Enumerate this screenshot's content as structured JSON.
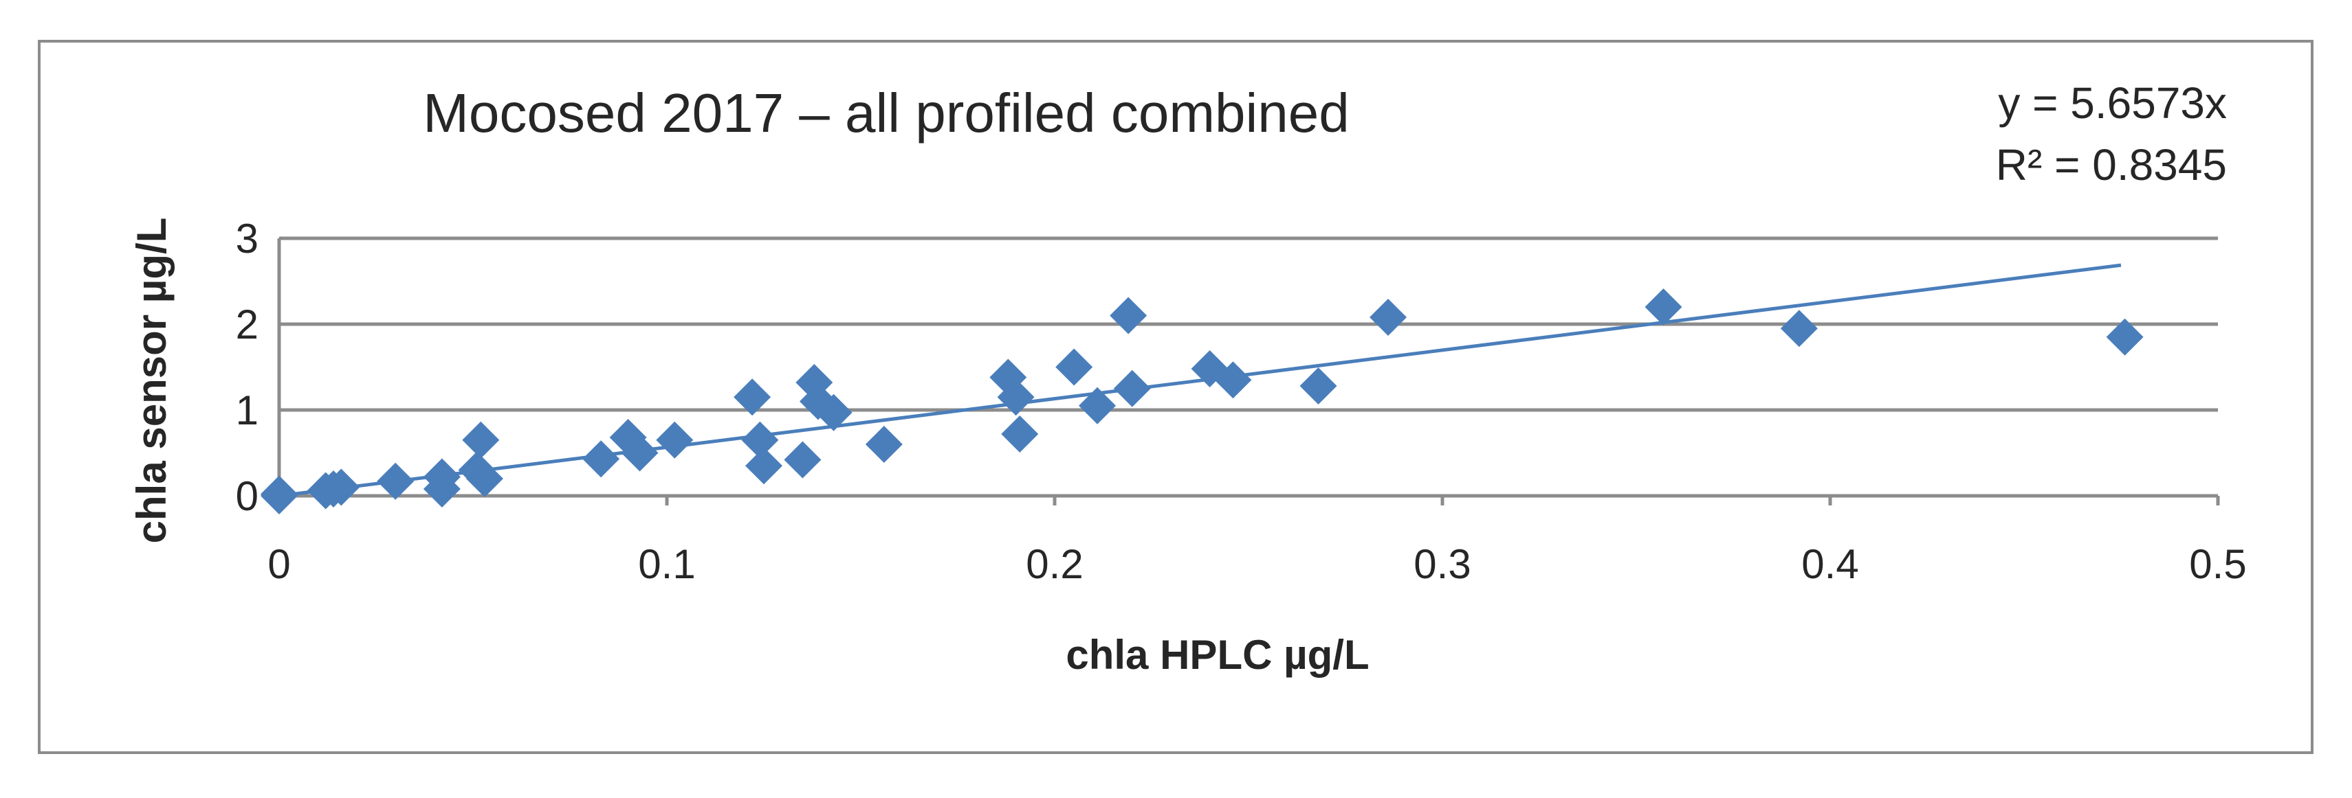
{
  "chart_data": {
    "type": "scatter",
    "title": "Mocosed 2017 – all profiled combined",
    "xlabel": "chla HPLC µg/L",
    "ylabel": "chla sensor µg/L",
    "xlim": [
      0,
      0.5
    ],
    "ylim": [
      0,
      3
    ],
    "xticks": [
      "0",
      "0.1",
      "0.2",
      "0.3",
      "0.4",
      "0.5"
    ],
    "yticks": [
      "0",
      "1",
      "2",
      "3"
    ],
    "grid": true,
    "legend": "none",
    "colors": {
      "marker": "#4a7ebb",
      "trendline": "#4a7ebb",
      "grid": "#8c8c8c"
    },
    "trendline": {
      "equation": "y = 5.6573x",
      "r_squared": "R² = 0.8345",
      "slope": 5.6573,
      "x_range": [
        0,
        0.475
      ]
    },
    "points": [
      [
        0.0,
        0.0
      ],
      [
        0.0,
        0.02
      ],
      [
        0.012,
        0.06
      ],
      [
        0.014,
        0.08
      ],
      [
        0.016,
        0.1
      ],
      [
        0.03,
        0.17
      ],
      [
        0.042,
        0.22
      ],
      [
        0.042,
        0.08
      ],
      [
        0.051,
        0.3
      ],
      [
        0.052,
        0.65
      ],
      [
        0.053,
        0.2
      ],
      [
        0.083,
        0.43
      ],
      [
        0.09,
        0.68
      ],
      [
        0.093,
        0.5
      ],
      [
        0.102,
        0.65
      ],
      [
        0.122,
        1.15
      ],
      [
        0.124,
        0.65
      ],
      [
        0.125,
        0.35
      ],
      [
        0.135,
        0.42
      ],
      [
        0.138,
        1.32
      ],
      [
        0.139,
        1.1
      ],
      [
        0.143,
        0.97
      ],
      [
        0.156,
        0.6
      ],
      [
        0.188,
        1.38
      ],
      [
        0.19,
        1.15
      ],
      [
        0.191,
        0.72
      ],
      [
        0.205,
        1.5
      ],
      [
        0.211,
        1.05
      ],
      [
        0.219,
        2.1
      ],
      [
        0.22,
        1.25
      ],
      [
        0.24,
        1.48
      ],
      [
        0.246,
        1.35
      ],
      [
        0.268,
        1.28
      ],
      [
        0.286,
        2.08
      ],
      [
        0.357,
        2.2
      ],
      [
        0.392,
        1.95
      ],
      [
        0.476,
        1.85
      ]
    ]
  }
}
